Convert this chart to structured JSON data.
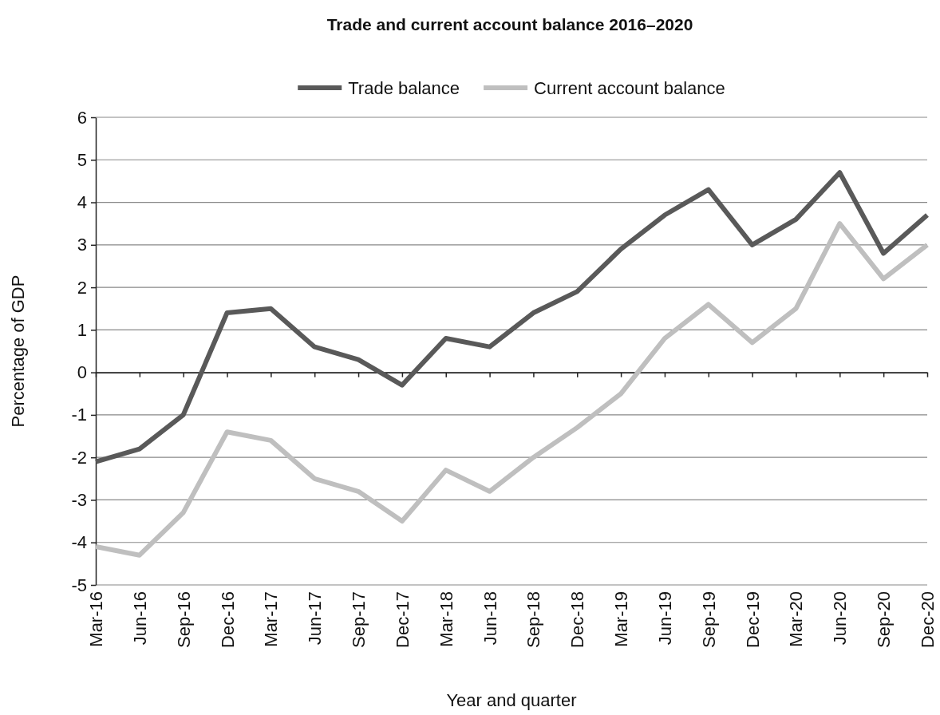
{
  "chart_data": {
    "type": "line",
    "title": "Trade and current account balance 2016–2020",
    "xlabel": "Year and quarter",
    "ylabel": "Percentage of GDP",
    "categories": [
      "Mar-16",
      "Jun-16",
      "Sep-16",
      "Dec-16",
      "Mar-17",
      "Jun-17",
      "Sep-17",
      "Dec-17",
      "Mar-18",
      "Jun-18",
      "Sep-18",
      "Dec-18",
      "Mar-19",
      "Jun-19",
      "Sep-19",
      "Dec-19",
      "Mar-20",
      "Jun-20",
      "Sep-20",
      "Dec-20"
    ],
    "series": [
      {
        "name": "Trade balance",
        "color": "#595959",
        "values": [
          -2.1,
          -1.8,
          -1.0,
          1.4,
          1.5,
          0.6,
          0.3,
          -0.3,
          0.8,
          0.6,
          1.4,
          1.9,
          2.9,
          3.7,
          4.3,
          3.0,
          3.6,
          4.7,
          2.8,
          3.7
        ]
      },
      {
        "name": "Current account balance",
        "color": "#bfbfbf",
        "values": [
          -4.1,
          -4.3,
          -3.3,
          -1.4,
          -1.6,
          -2.5,
          -2.8,
          -3.5,
          -2.3,
          -2.8,
          -2.0,
          -1.3,
          -0.5,
          0.8,
          1.6,
          0.7,
          1.5,
          3.5,
          2.2,
          3.0
        ]
      }
    ],
    "ylim": [
      -5,
      6
    ],
    "yticks": [
      -5,
      -4,
      -3,
      -2,
      -1,
      0,
      1,
      2,
      3,
      4,
      5,
      6
    ],
    "grid": "y",
    "legend": "top",
    "marker": "none",
    "line_style": "solid"
  }
}
